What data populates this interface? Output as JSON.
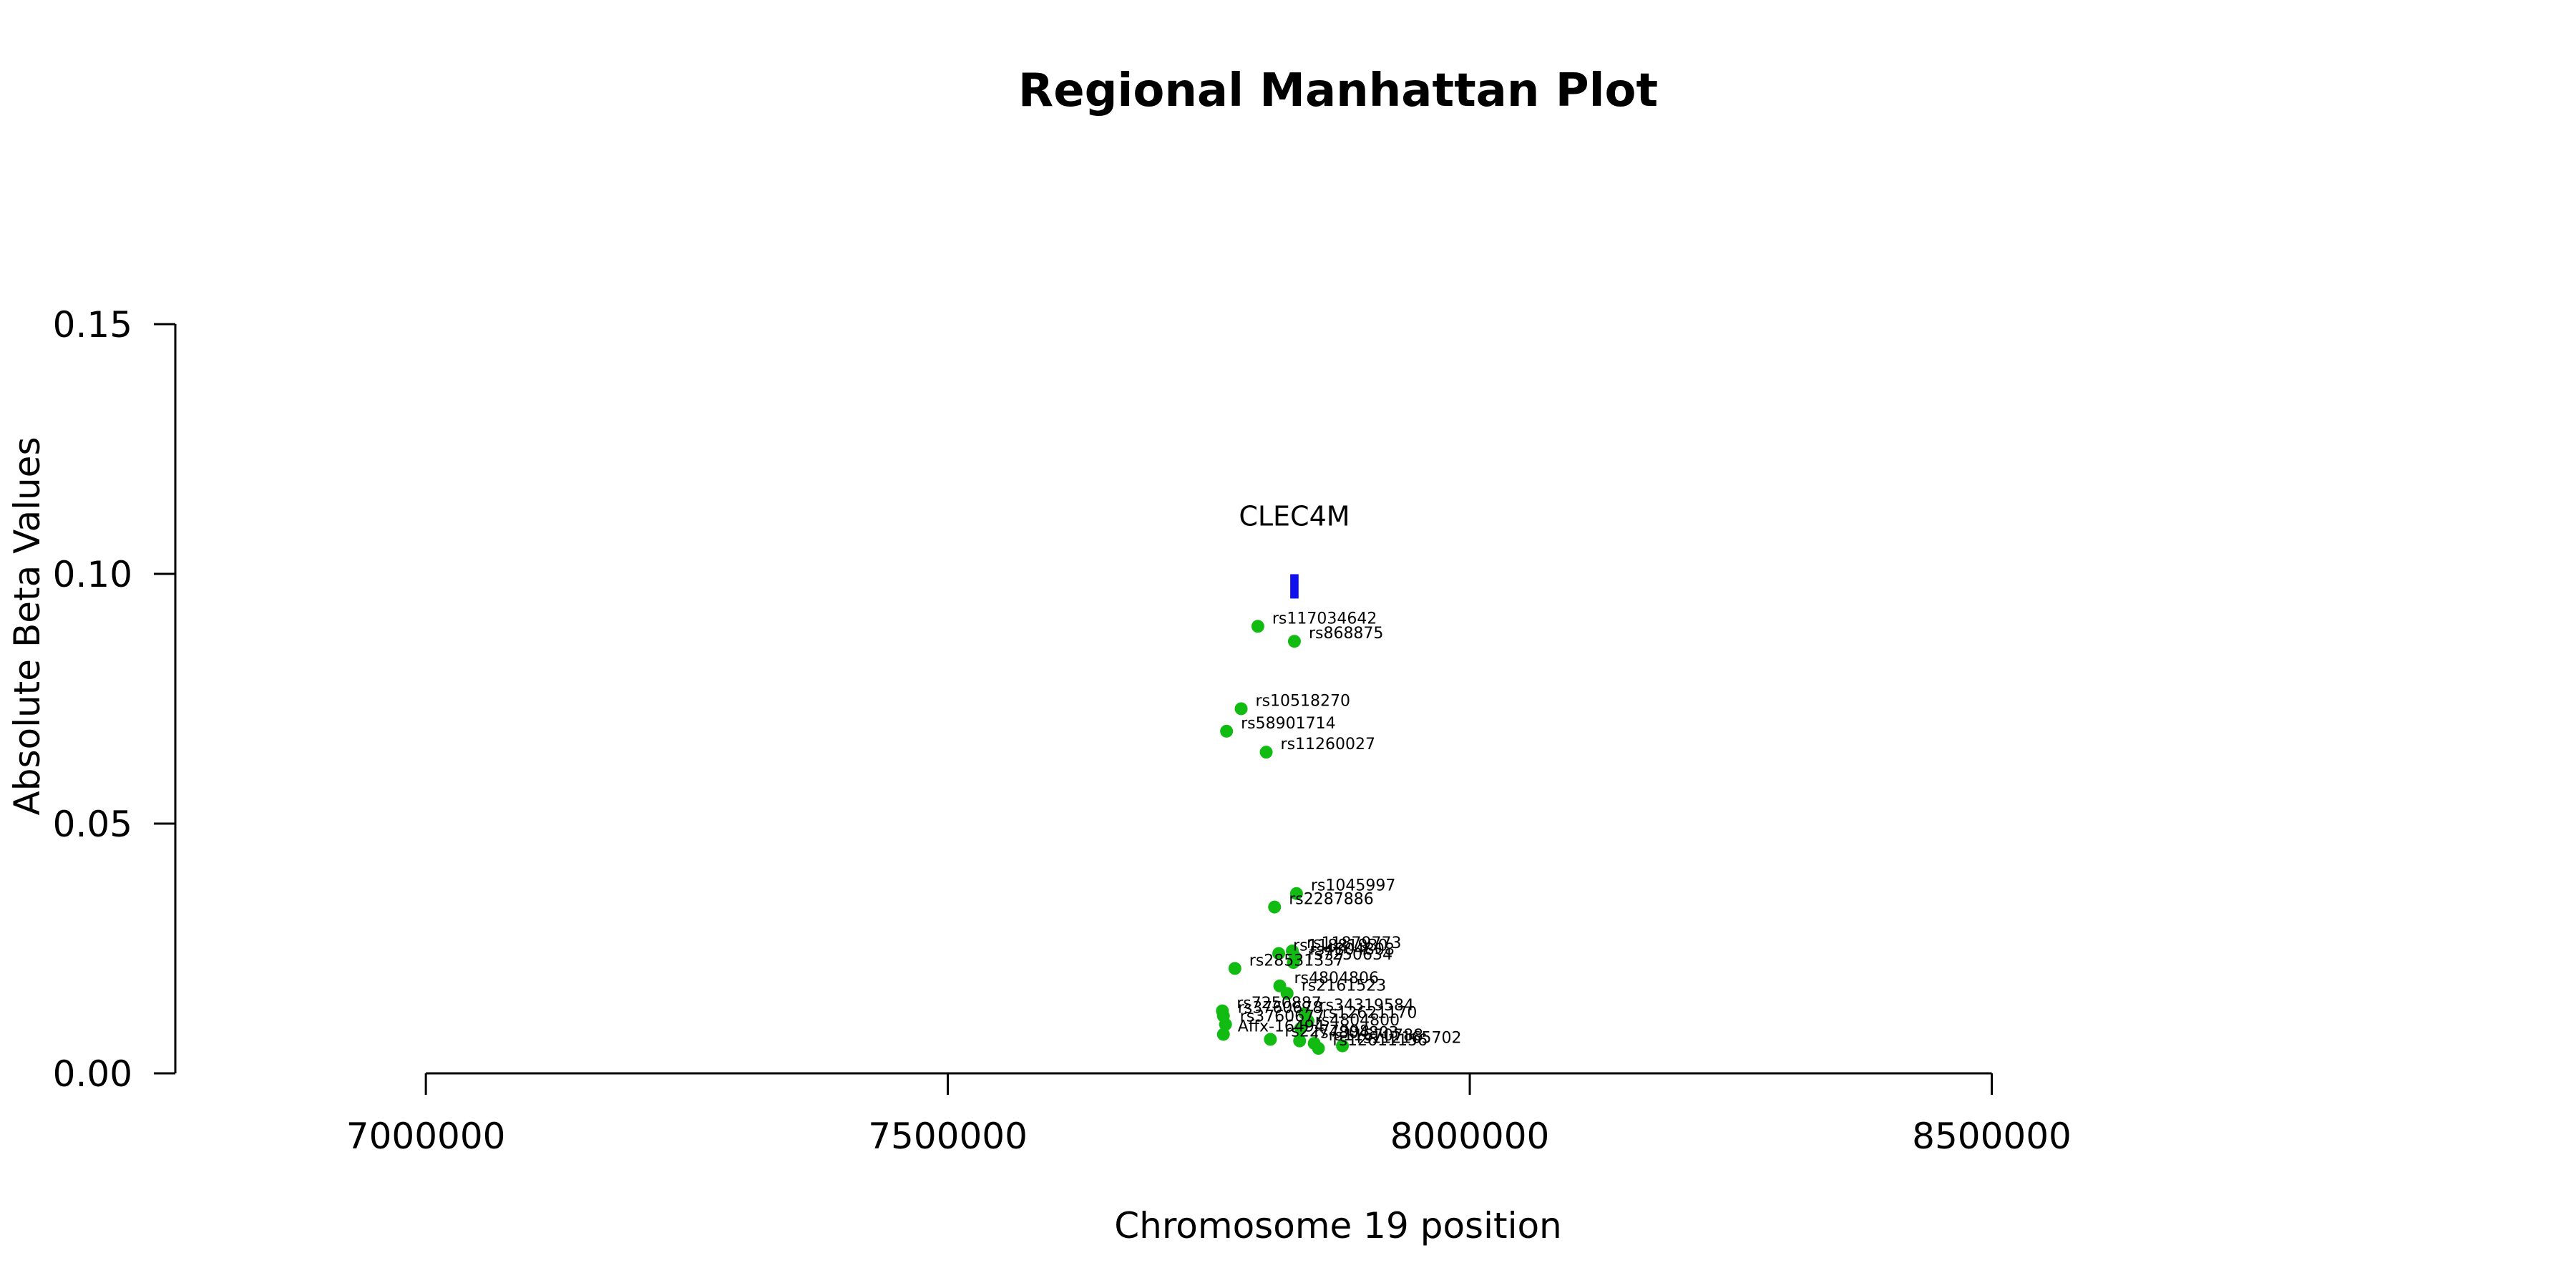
{
  "chart_data": {
    "type": "scatter",
    "title": "Regional Manhattan Plot",
    "xlabel": "Chromosome 19 position",
    "ylabel": "Absolute Beta Values",
    "xlim": [
      6760000,
      8950000
    ],
    "ylim": [
      0,
      0.15
    ],
    "xticks": [
      7000000,
      7500000,
      8000000,
      8500000
    ],
    "xtick_labels": [
      "7000000",
      "7500000",
      "8000000",
      "8500000"
    ],
    "yticks": [
      0,
      0.05,
      0.1,
      0.15
    ],
    "ytick_labels": [
      "0.00",
      "0.05",
      "0.10",
      "0.15"
    ],
    "grid": false,
    "point_color": "#11bb11",
    "gene_color": "#1111ee",
    "genes": [
      {
        "name": "CLEC4M",
        "start": 7828000,
        "end": 7836000,
        "y": 0.0975
      }
    ],
    "points": [
      {
        "label": "rs117034642",
        "x": 7797000,
        "y": 0.0895
      },
      {
        "label": "rs868875",
        "x": 7832000,
        "y": 0.0865
      },
      {
        "label": "rs10518270",
        "x": 7781000,
        "y": 0.073
      },
      {
        "label": "rs58901714",
        "x": 7767000,
        "y": 0.0685
      },
      {
        "label": "rs11260027",
        "x": 7805000,
        "y": 0.0643
      },
      {
        "label": "rs1045997",
        "x": 7834000,
        "y": 0.036
      },
      {
        "label": "rs2287886",
        "x": 7813000,
        "y": 0.0333
      },
      {
        "label": "rs11879773",
        "x": 7830000,
        "y": 0.0245
      },
      {
        "label": "rs11881930",
        "x": 7817000,
        "y": 0.024
      },
      {
        "label": "rs4804808",
        "x": 7833000,
        "y": 0.0232
      },
      {
        "label": "rs7250634",
        "x": 7831000,
        "y": 0.0222
      },
      {
        "label": "rs28531337",
        "x": 7775000,
        "y": 0.021
      },
      {
        "label": "rs4804806",
        "x": 7818000,
        "y": 0.0175
      },
      {
        "label": "rs2161523",
        "x": 7825000,
        "y": 0.016
      },
      {
        "label": "rs7250887",
        "x": 7763000,
        "y": 0.0125
      },
      {
        "label": "rs34319584",
        "x": 7842000,
        "y": 0.012
      },
      {
        "label": "rs3760678",
        "x": 7764000,
        "y": 0.0115
      },
      {
        "label": "rs12621170",
        "x": 7845000,
        "y": 0.0105
      },
      {
        "label": "rs3760677",
        "x": 7766000,
        "y": 0.0098
      },
      {
        "label": "rs4804800",
        "x": 7838000,
        "y": 0.009
      },
      {
        "label": "Affx-16494",
        "x": 7764000,
        "y": 0.0078
      },
      {
        "label": "rs2277998",
        "x": 7809000,
        "y": 0.0068
      },
      {
        "label": "rs4804803",
        "x": 7837000,
        "y": 0.0065
      },
      {
        "label": "rs11670788",
        "x": 7851000,
        "y": 0.006
      },
      {
        "label": "rs112165702",
        "x": 7878000,
        "y": 0.0055
      },
      {
        "label": "rs12611156",
        "x": 7855000,
        "y": 0.005
      }
    ]
  }
}
